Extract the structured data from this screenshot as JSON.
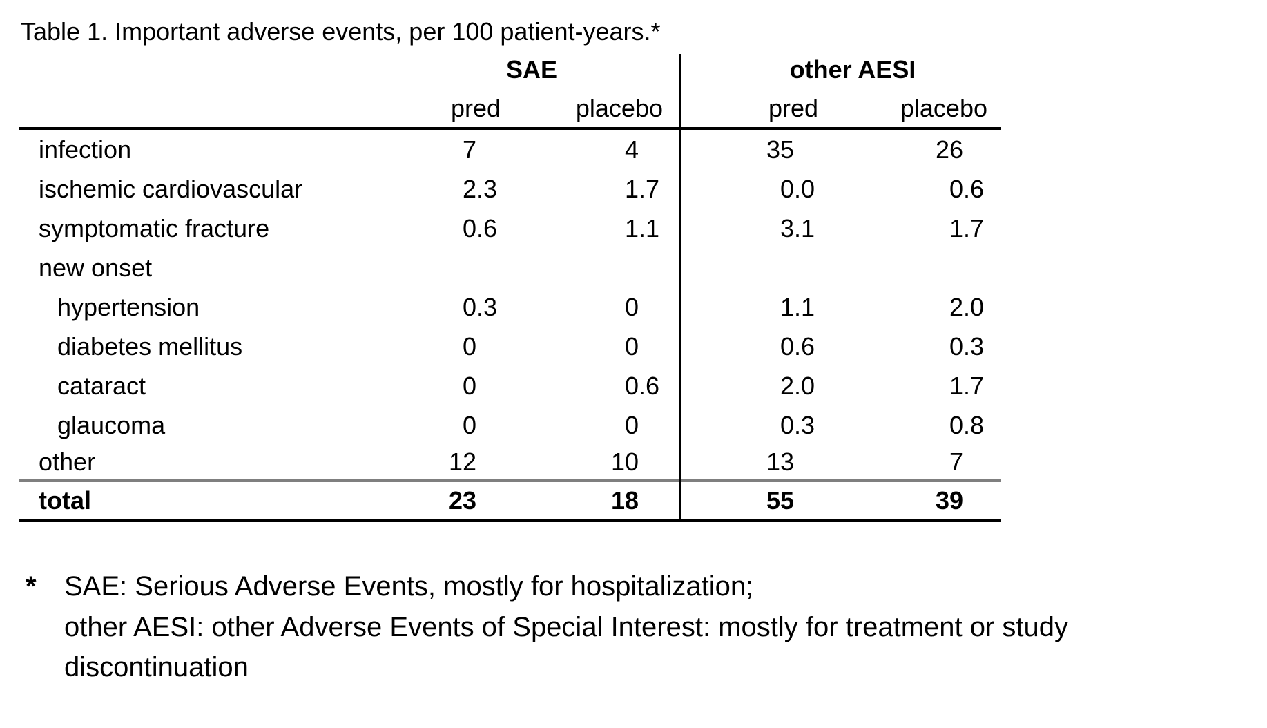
{
  "title": "Table 1. Important adverse events, per 100 patient-years.*",
  "table": {
    "group_headers": {
      "sae": "SAE",
      "other_aesi": "other AESI"
    },
    "col_headers": [
      "pred",
      "placebo",
      "pred",
      "placebo"
    ],
    "rows": [
      {
        "label": "infection",
        "indent": false,
        "values": [
          "7",
          "4",
          "35",
          "26"
        ]
      },
      {
        "label": "ischemic cardiovascular",
        "indent": false,
        "values": [
          "2.3",
          "1.7",
          "0.0",
          "0.6"
        ]
      },
      {
        "label": "symptomatic fracture",
        "indent": false,
        "values": [
          "0.6",
          "1.1",
          "3.1",
          "1.7"
        ]
      },
      {
        "label": "new onset",
        "indent": false,
        "values": [
          "",
          "",
          "",
          ""
        ]
      },
      {
        "label": "hypertension",
        "indent": true,
        "values": [
          "0.3",
          "0",
          "1.1",
          "2.0"
        ]
      },
      {
        "label": "diabetes mellitus",
        "indent": true,
        "values": [
          "0",
          "0",
          "0.6",
          "0.3"
        ]
      },
      {
        "label": "cataract",
        "indent": true,
        "values": [
          "0",
          "0.6",
          "2.0",
          "1.7"
        ]
      },
      {
        "label": "glaucoma",
        "indent": true,
        "values": [
          "0",
          "0",
          "0.3",
          "0.8"
        ]
      },
      {
        "label": "other",
        "indent": false,
        "values": [
          "12",
          "10",
          "13",
          "7"
        ]
      }
    ],
    "total_row": {
      "label": "total",
      "values": [
        "23",
        "18",
        "55",
        "39"
      ]
    }
  },
  "footnote": {
    "marker": "*",
    "lines": [
      "SAE: Serious Adverse Events, mostly for hospitalization;",
      "other AESI: other Adverse Events of Special Interest: mostly for treatment or study",
      "discontinuation"
    ]
  },
  "colors": {
    "text": "#000000",
    "rule": "#000000",
    "subtotal_rule": "#7f7f7f",
    "background": "#ffffff"
  }
}
